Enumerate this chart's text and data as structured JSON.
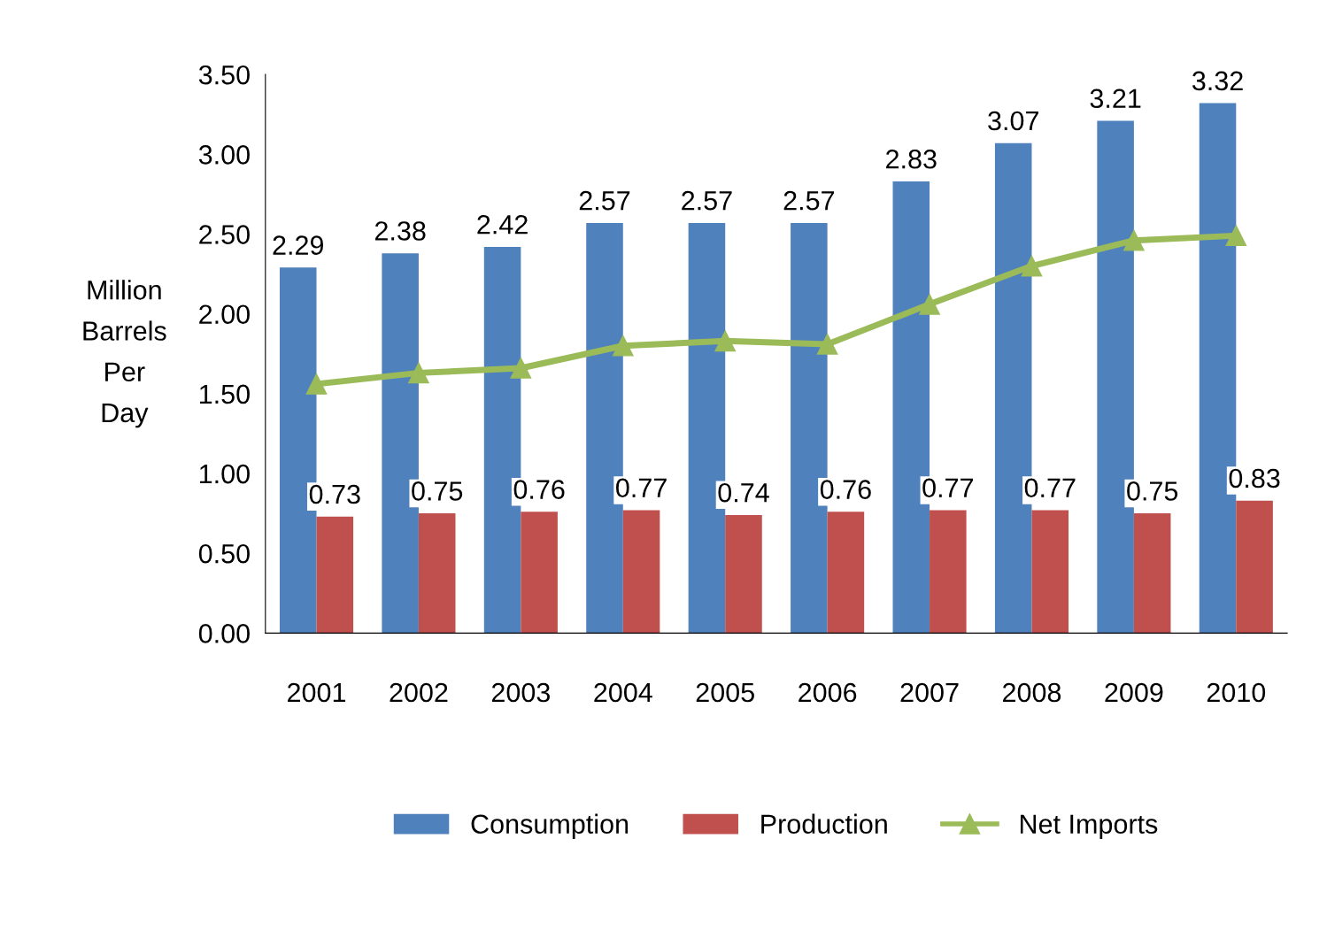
{
  "chart_data": {
    "type": "bar",
    "ylabel": "Million\nBarrels\nPer\nDay",
    "categories": [
      "2001",
      "2002",
      "2003",
      "2004",
      "2005",
      "2006",
      "2007",
      "2008",
      "2009",
      "2010"
    ],
    "series": [
      {
        "name": "Consumption",
        "color": "#4f81bd",
        "values": [
          2.29,
          2.38,
          2.42,
          2.57,
          2.57,
          2.57,
          2.83,
          3.07,
          3.21,
          3.32
        ],
        "value_labels": [
          "2.29",
          "2.38",
          "2.42",
          "2.57",
          "2.57",
          "2.57",
          "2.83",
          "3.07",
          "3.21",
          "3.32"
        ]
      },
      {
        "name": "Production",
        "color": "#c0504d",
        "values": [
          0.73,
          0.75,
          0.76,
          0.77,
          0.74,
          0.76,
          0.77,
          0.77,
          0.75,
          0.83
        ],
        "value_labels": [
          "0.73",
          "0.75",
          "0.76",
          "0.77",
          "0.74",
          "0.76",
          "0.77",
          "0.77",
          "0.75",
          "0.83"
        ]
      },
      {
        "name": "Net Imports",
        "type": "line",
        "color": "#9bbb59",
        "marker": "triangle",
        "values": [
          1.56,
          1.63,
          1.66,
          1.8,
          1.83,
          1.81,
          2.06,
          2.3,
          2.46,
          2.49
        ]
      }
    ],
    "ylim": [
      0,
      3.5
    ],
    "yticks": [
      {
        "value": 0,
        "label": "0.00"
      },
      {
        "value": 0.5,
        "label": "0.50"
      },
      {
        "value": 1,
        "label": "1.00"
      },
      {
        "value": 1.5,
        "label": "1.50"
      },
      {
        "value": 2,
        "label": "2.00"
      },
      {
        "value": 2.5,
        "label": "2.50"
      },
      {
        "value": 3,
        "label": "3.00"
      },
      {
        "value": 3.5,
        "label": "3.50"
      }
    ],
    "grid": false,
    "legend": "bottom"
  }
}
